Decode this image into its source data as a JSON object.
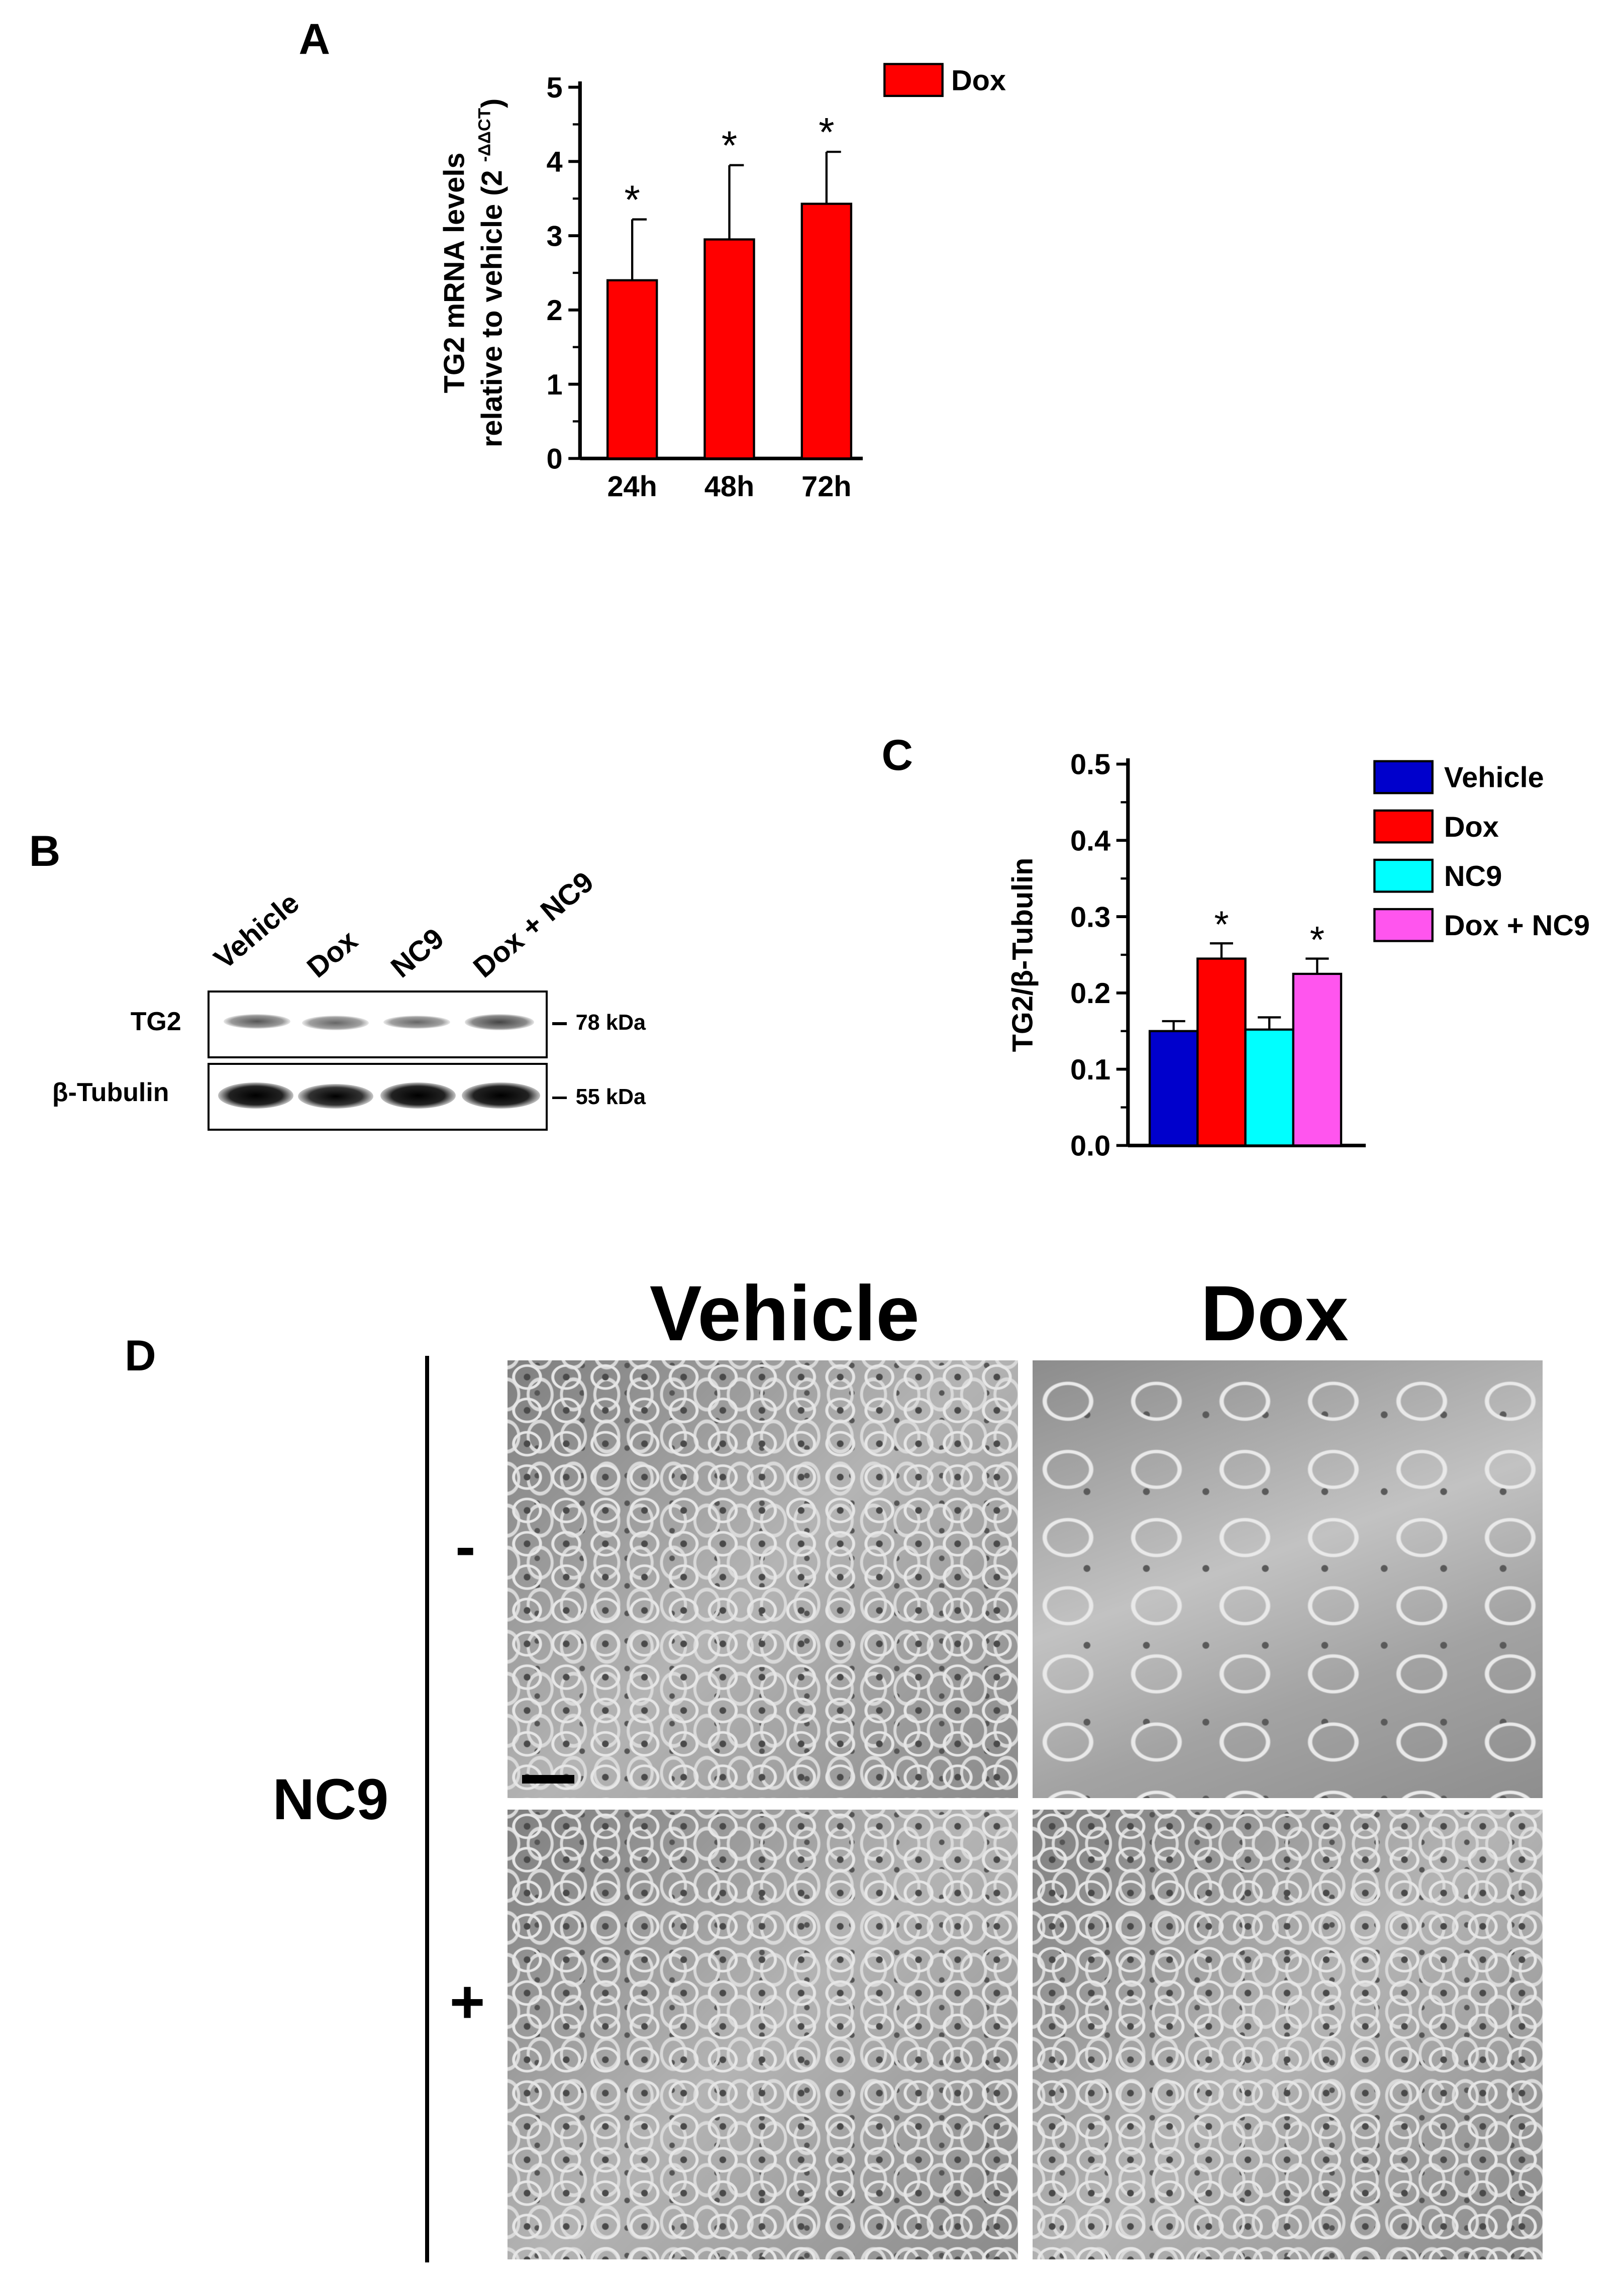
{
  "panels": {
    "a": {
      "letter": "A"
    },
    "b": {
      "letter": "B"
    },
    "c": {
      "letter": "C"
    },
    "d": {
      "letter": "D"
    }
  },
  "chart_data": [
    {
      "id": "panel-a",
      "type": "bar",
      "ylabel_line1": "TG2 mRNA levels",
      "ylabel_line2": "relative to vehicle (2",
      "ylabel_superscript": "-ΔΔCT",
      "ylabel_close": ")",
      "ylim": [
        0,
        5
      ],
      "yticks": [
        "0",
        "1",
        "2",
        "3",
        "4",
        "5"
      ],
      "categories": [
        "24h",
        "48h",
        "72h"
      ],
      "series": [
        {
          "name": "Dox",
          "color": "#ff0000",
          "values": [
            2.4,
            2.95,
            3.43
          ],
          "errors": [
            0.82,
            1.0,
            0.7
          ],
          "annotations": [
            "*",
            "*",
            "*"
          ]
        }
      ],
      "legend_position": "top-right",
      "grid": false
    },
    {
      "id": "panel-c",
      "type": "bar",
      "ylabel": "TG2/β-Tubulin",
      "ylim": [
        0,
        0.5
      ],
      "yticks": [
        "0.0",
        "0.1",
        "0.2",
        "0.3",
        "0.4",
        "0.5"
      ],
      "categories": [
        "Vehicle",
        "Dox",
        "NC9",
        "Dox + NC9"
      ],
      "values": [
        0.15,
        0.245,
        0.152,
        0.225
      ],
      "errors": [
        0.013,
        0.02,
        0.016,
        0.02
      ],
      "colors": [
        "#0000cc",
        "#ff0000",
        "#00ffff",
        "#ff55ee"
      ],
      "annotations": [
        "",
        "*",
        "",
        "*"
      ],
      "legend": [
        "Vehicle",
        "Dox",
        "NC9",
        "Dox + NC9"
      ],
      "legend_position": "top-right",
      "grid": false
    }
  ],
  "blot": {
    "lanes": [
      "Vehicle",
      "Dox",
      "NC9",
      "Dox + NC9"
    ],
    "rows": [
      {
        "label": "TG2",
        "marker": "78 kDa"
      },
      {
        "label": "β-Tubulin",
        "marker": "55 kDa"
      }
    ]
  },
  "micrographs": {
    "columns": [
      "Vehicle",
      "Dox"
    ],
    "row_signs": [
      "-",
      "+"
    ],
    "treatment_label": "NC9"
  }
}
